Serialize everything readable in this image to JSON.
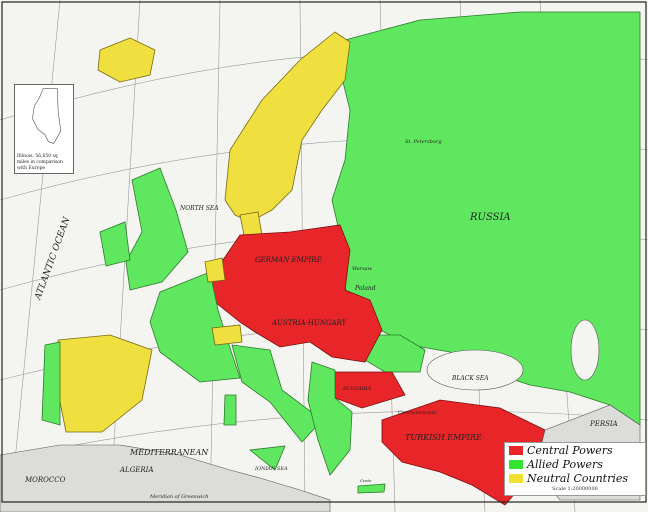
{
  "legend": {
    "items": [
      {
        "label": "Central Powers",
        "color": "#e8262a"
      },
      {
        "label": "Allied Powers",
        "color": "#33e433"
      },
      {
        "label": "Neutral Countries",
        "color": "#f0e030"
      }
    ],
    "scale": "Scale 1:20000000"
  },
  "inset": {
    "caption": "Illinois, 56,650 sq miles in comparison with Europe"
  },
  "labels": {
    "atlantic": "ATLANTIC OCEAN",
    "north_sea": "NORTH SEA",
    "black_sea": "BLACK SEA",
    "ionian_sea": "IONIAN SEA",
    "mediterranean": "MEDITERRANEAN",
    "morocco": "MOROCCO",
    "algeria": "ALGERIA",
    "turkish_empire": "TURKISH EMPIRE",
    "persia": "PERSIA",
    "germany": "GERMAN EMPIRE",
    "austria": "AUSTRIA-HUNGARY",
    "russia": "RUSSIA",
    "bulgaria": "BULGARIA",
    "st_petersburg": "St. Petersburg",
    "warsaw": "Warsaw",
    "poland": "Poland",
    "constantinople": "Constantinople",
    "greenwich": "Meridian of Greenwich",
    "crete": "Crete"
  }
}
